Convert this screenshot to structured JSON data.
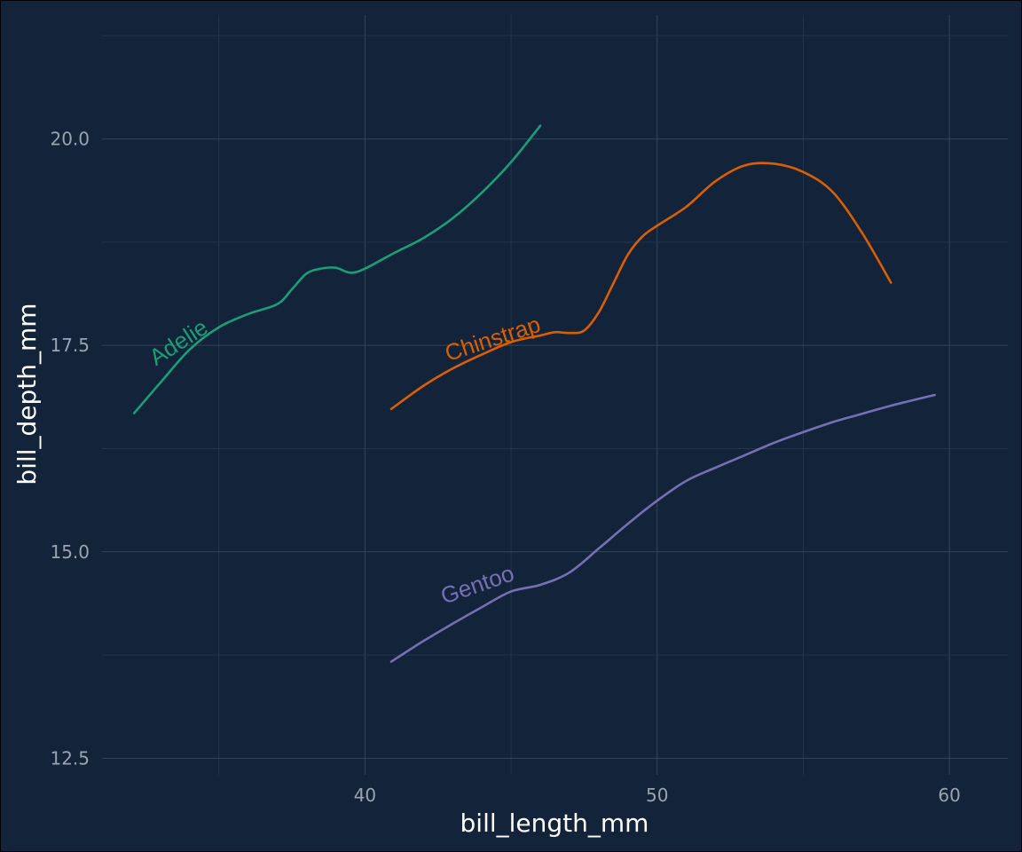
{
  "colors": {
    "background": "#13233a",
    "Adelie": "#1b9e77",
    "Chinstrap": "#d95f02",
    "Gentoo": "#7570b3"
  },
  "chart_data": {
    "type": "line",
    "title": "",
    "xlabel": "bill_length_mm",
    "ylabel": "bill_depth_mm",
    "xlim": [
      31.0,
      62.0
    ],
    "ylim": [
      12.3,
      21.5
    ],
    "xticks": [
      40,
      50,
      60
    ],
    "xtick_labels": [
      "40",
      "50",
      "60"
    ],
    "yticks": [
      12.5,
      15.0,
      17.5,
      20.0
    ],
    "ytick_labels": [
      "12.5",
      "15.0",
      "17.5",
      "20.0"
    ],
    "grid": true,
    "legend": "direct labels on lines",
    "series": [
      {
        "name": "Adelie",
        "label": "Adelie",
        "x": [
          32.1,
          33.0,
          34.0,
          35.0,
          36.0,
          37.0,
          37.5,
          38.0,
          38.5,
          39.0,
          39.5,
          40.0,
          41.0,
          42.0,
          43.0,
          44.0,
          45.0,
          46.0
        ],
        "y": [
          16.68,
          17.05,
          17.45,
          17.72,
          17.88,
          18.0,
          18.18,
          18.37,
          18.43,
          18.44,
          18.38,
          18.43,
          18.62,
          18.8,
          19.04,
          19.35,
          19.72,
          20.16
        ]
      },
      {
        "name": "Chinstrap",
        "label": "Chinstrap",
        "x": [
          40.9,
          42.0,
          43.0,
          44.0,
          45.0,
          46.0,
          46.5,
          47.0,
          47.5,
          48.0,
          48.5,
          49.0,
          49.5,
          50.0,
          51.0,
          52.0,
          53.0,
          54.0,
          55.0,
          56.0,
          57.0,
          58.0
        ],
        "y": [
          16.73,
          17.01,
          17.22,
          17.39,
          17.54,
          17.62,
          17.66,
          17.65,
          17.68,
          17.9,
          18.25,
          18.6,
          18.82,
          18.95,
          19.18,
          19.49,
          19.68,
          19.7,
          19.6,
          19.36,
          18.87,
          18.26
        ]
      },
      {
        "name": "Gentoo",
        "label": "Gentoo",
        "x": [
          40.9,
          42.0,
          43.0,
          44.0,
          45.0,
          46.0,
          47.0,
          48.0,
          49.0,
          50.0,
          51.0,
          52.0,
          53.0,
          54.0,
          55.0,
          56.0,
          57.0,
          58.0,
          59.5
        ],
        "y": [
          13.67,
          13.92,
          14.13,
          14.33,
          14.52,
          14.6,
          14.75,
          15.04,
          15.34,
          15.62,
          15.86,
          16.02,
          16.17,
          16.32,
          16.45,
          16.57,
          16.67,
          16.77,
          16.9
        ]
      }
    ]
  }
}
